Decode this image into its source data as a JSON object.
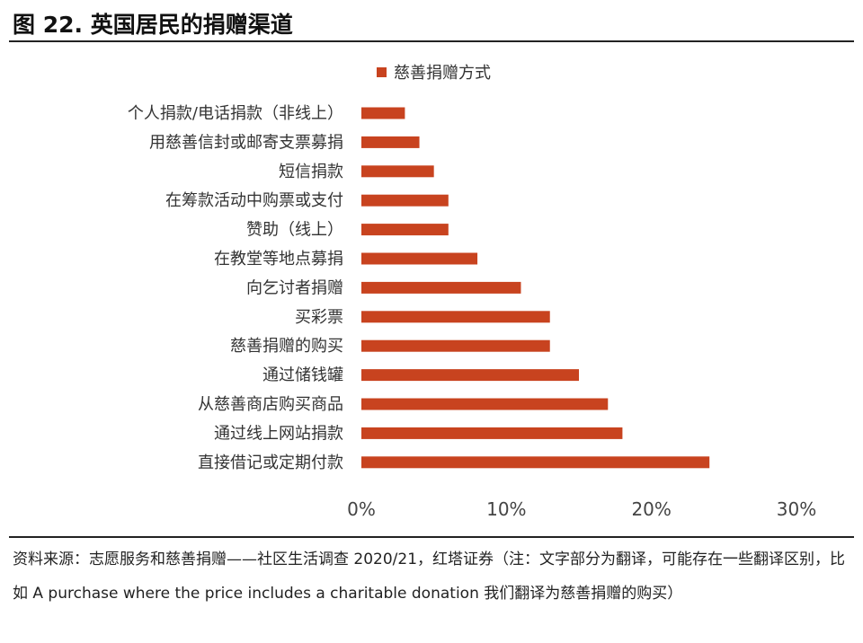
{
  "figure": {
    "title": "图 22. 英国居民的捐赠渠道",
    "source": "资料来源：志愿服务和慈善捐赠——社区生活调查 2020/21，红塔证券（注：文字部分为翻译，可能存在一些翻译区别，比如 A purchase where the price includes a charitable donation 我们翻译为慈善捐赠的购买）"
  },
  "colors": {
    "bar": "#C8431F"
  },
  "chart_data": {
    "type": "bar",
    "orientation": "horizontal",
    "categories": [
      "个人捐款/电话捐款（非线上）",
      "用慈善信封或邮寄支票募捐",
      "短信捐款",
      "在筹款活动中购票或支付",
      "赞助（线上）",
      "在教堂等地点募捐",
      "向乞讨者捐赠",
      "买彩票",
      "慈善捐赠的购买",
      "通过储钱罐",
      "从慈善商店购买商品",
      "通过线上网站捐款",
      "直接借记或定期付款"
    ],
    "series": [
      {
        "name": "慈善捐赠方式",
        "values": [
          3,
          4,
          5,
          6,
          6,
          8,
          11,
          13,
          13,
          15,
          17,
          18,
          24
        ]
      }
    ],
    "xlim": [
      0,
      30
    ],
    "xticks": [
      "0%",
      "10%",
      "20%",
      "30%"
    ],
    "grid": false,
    "legend_position": "top"
  }
}
